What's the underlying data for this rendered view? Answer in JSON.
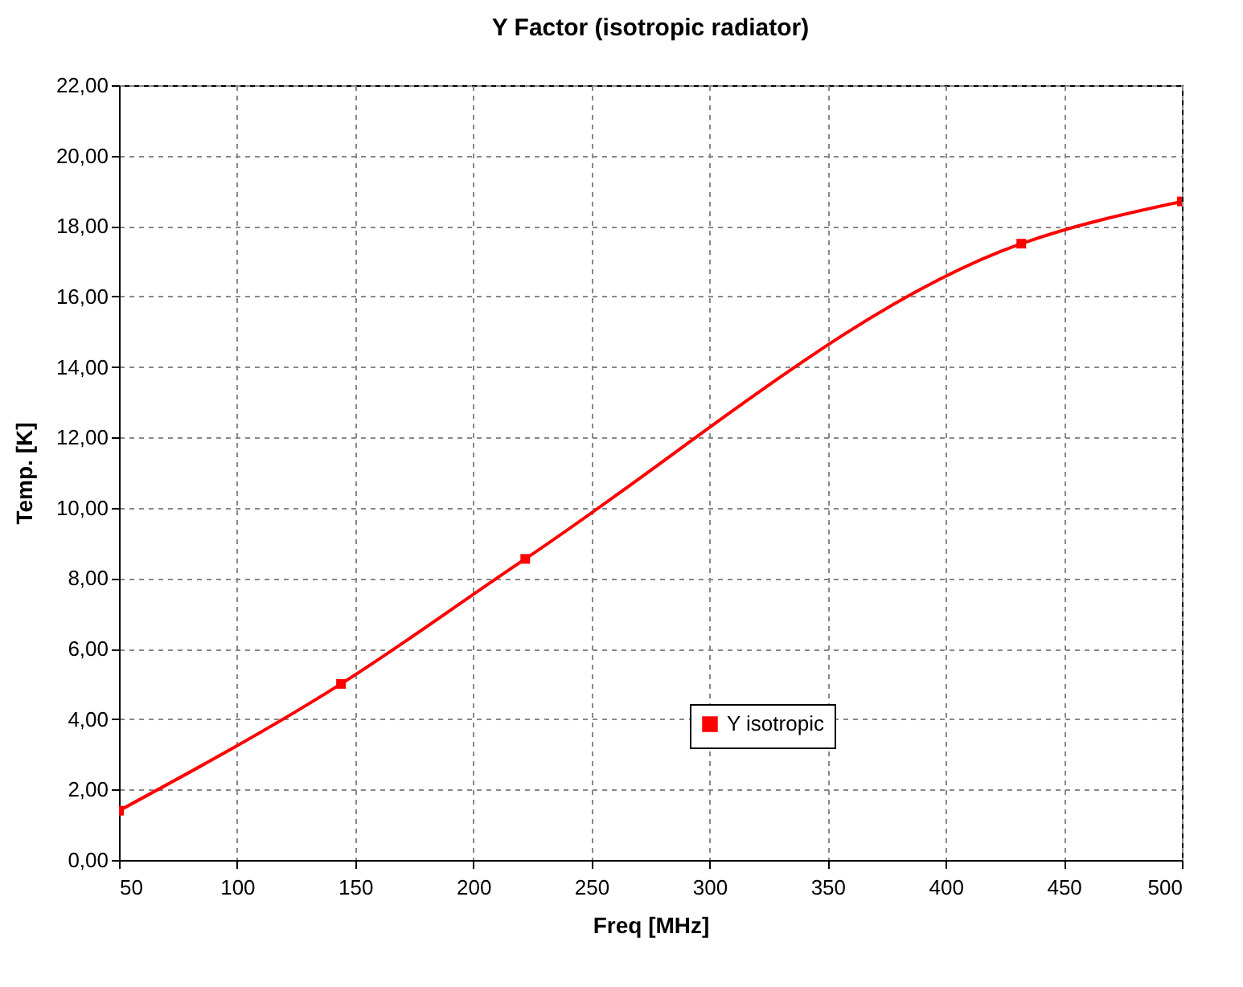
{
  "chart_data": {
    "type": "line",
    "title": "Y Factor (isotropic radiator)",
    "xlabel": "Freq [MHz]",
    "ylabel": "Temp. [K]",
    "x": [
      50,
      144,
      222,
      432,
      500
    ],
    "series": [
      {
        "name": "Y isotropic",
        "color": "#ff0000",
        "values": [
          1.4,
          5.0,
          8.55,
          17.5,
          18.7
        ]
      }
    ],
    "xlim": [
      50,
      500
    ],
    "xticks": [
      50,
      100,
      150,
      200,
      250,
      300,
      350,
      400,
      450,
      500
    ],
    "ylim": [
      0,
      22
    ],
    "yticks": [
      {
        "value": 0,
        "label": "0,00"
      },
      {
        "value": 2,
        "label": "2,00"
      },
      {
        "value": 4,
        "label": "4,00"
      },
      {
        "value": 6,
        "label": "6,00"
      },
      {
        "value": 8,
        "label": "8,00"
      },
      {
        "value": 10,
        "label": "10,00"
      },
      {
        "value": 12,
        "label": "12,00"
      },
      {
        "value": 14,
        "label": "14,00"
      },
      {
        "value": 16,
        "label": "16,00"
      },
      {
        "value": 18,
        "label": "18,00"
      },
      {
        "value": 20,
        "label": "20,00"
      },
      {
        "value": 22,
        "label": "22,00"
      }
    ],
    "grid": true,
    "legend": "bottom right",
    "marker": "square",
    "line_style": "solid"
  }
}
